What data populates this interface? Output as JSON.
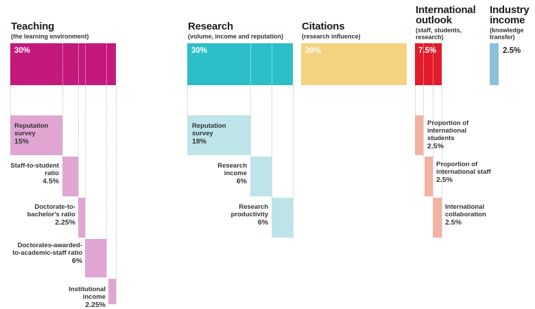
{
  "categories": {
    "teaching": {
      "title": "Teaching",
      "subtitle": "(the learning environment)",
      "weight": "30%",
      "color": "#c4197c",
      "sub_color": "#e0a6d1",
      "items": [
        {
          "label": "Reputation survey",
          "value": "15%"
        },
        {
          "label": "Staff-to-student ratio",
          "value": "4.5%"
        },
        {
          "label": "Doctorate-to-bachelor's ratio",
          "value": "2.25%"
        },
        {
          "label": "Doctorates-awarded-to-academic-staff ratio",
          "value": "6%"
        },
        {
          "label": "Institutional income",
          "value": "2.25%"
        }
      ]
    },
    "research": {
      "title": "Research",
      "subtitle": "(volume, income and reputation)",
      "weight": "30%",
      "color": "#2dbfc7",
      "sub_color": "#bde4e8",
      "items": [
        {
          "label": "Reputation survey",
          "value": "18%"
        },
        {
          "label": "Research income",
          "value": "6%"
        },
        {
          "label": "Research productivity",
          "value": "6%"
        }
      ]
    },
    "citations": {
      "title": "Citations",
      "subtitle": "(research influence)",
      "weight": "30%",
      "color": "#f5d27f"
    },
    "international": {
      "title": "International outlook",
      "subtitle": "(staff, students, research)",
      "weight": "7.5%",
      "color": "#e21b2a",
      "sub_color": "#f2b3a2",
      "items": [
        {
          "label": "Proportion of international students",
          "value": "2.5%"
        },
        {
          "label": "Proportion of international staff",
          "value": "2.5%"
        },
        {
          "label": "International collaboration",
          "value": "2.5%"
        }
      ]
    },
    "industry": {
      "title": "Industry income",
      "subtitle": "(knowledge transfer)",
      "weight": "2.5%",
      "color": "#8cbfdc"
    }
  }
}
